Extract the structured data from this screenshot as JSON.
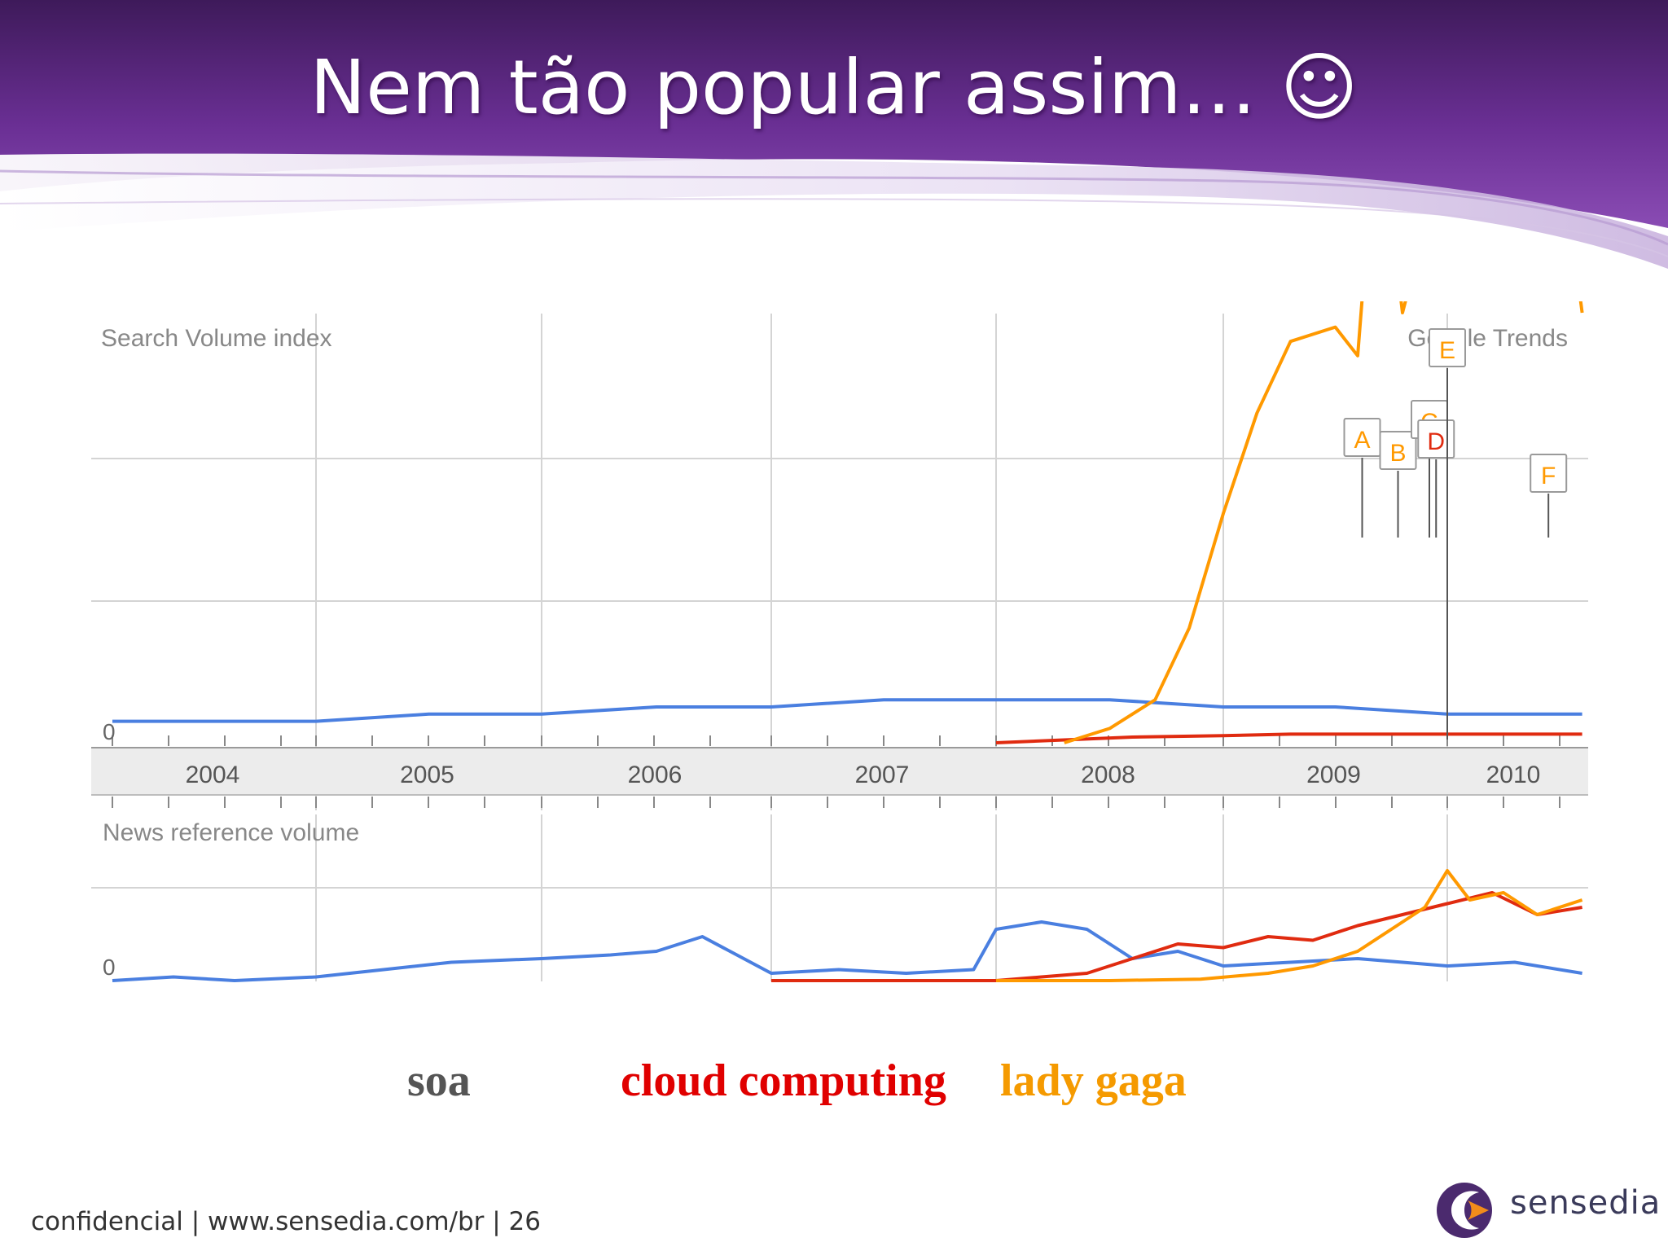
{
  "slide": {
    "title": "Nem tão popular assim…  ☺",
    "footer": "confidencial | www.sensedia.com/br | 26",
    "logo_text": "sensedia"
  },
  "chart_data": [
    {
      "type": "line",
      "title": "Search Volume index",
      "watermark": "Google Trends",
      "xlabel": "",
      "ylabel": "",
      "x_ticks": [
        "2004",
        "2005",
        "2006",
        "2007",
        "2008",
        "2009",
        "2010"
      ],
      "y_ticks": [
        "0"
      ],
      "grid": true,
      "legend": "bottom",
      "series": [
        {
          "name": "soa",
          "color": "#4a7fe0",
          "x": [
            2004.0,
            2004.5,
            2005.0,
            2005.5,
            2006.0,
            2006.5,
            2007.0,
            2007.5,
            2008.0,
            2008.5,
            2009.0,
            2009.5,
            2010.0,
            2010.6
          ],
          "y": [
            0.15,
            0.15,
            0.15,
            0.2,
            0.2,
            0.25,
            0.25,
            0.3,
            0.3,
            0.3,
            0.25,
            0.25,
            0.2,
            0.2
          ]
        },
        {
          "name": "cloud computing",
          "color": "#e02b10",
          "x": [
            2008.0,
            2008.3,
            2008.6,
            2009.0,
            2009.3,
            2009.6,
            2010.0,
            2010.3,
            2010.6
          ],
          "y": [
            0.0,
            0.02,
            0.04,
            0.05,
            0.06,
            0.06,
            0.06,
            0.06,
            0.06
          ]
        },
        {
          "name": "lady gaga",
          "color": "#ff9900",
          "x": [
            2008.3,
            2008.5,
            2008.7,
            2008.85,
            2009.0,
            2009.15,
            2009.3,
            2009.5,
            2009.6,
            2009.65,
            2009.7,
            2009.8,
            2009.9,
            2010.0,
            2010.05,
            2010.1,
            2010.2,
            2010.3,
            2010.35,
            2010.45,
            2010.55,
            2010.6
          ],
          "y": [
            0.0,
            0.1,
            0.3,
            0.8,
            1.6,
            2.3,
            2.8,
            2.9,
            2.7,
            3.7,
            4.3,
            3.0,
            3.6,
            4.4,
            3.8,
            4.2,
            3.6,
            4.1,
            3.3,
            3.8,
            3.6,
            3.0
          ]
        }
      ],
      "annotations": [
        "A",
        "B",
        "C",
        "D",
        "E",
        "F"
      ]
    },
    {
      "type": "line",
      "title": "News reference volume",
      "xlabel": "",
      "ylabel": "",
      "y_ticks": [
        "0"
      ],
      "grid": true,
      "series": [
        {
          "name": "soa",
          "color": "#4a7fe0",
          "x": [
            2004.0,
            2004.3,
            2004.6,
            2005.0,
            2005.3,
            2005.6,
            2006.0,
            2006.3,
            2006.5,
            2006.7,
            2007.0,
            2007.3,
            2007.6,
            2007.9,
            2008.0,
            2008.2,
            2008.4,
            2008.6,
            2008.8,
            2009.0,
            2009.3,
            2009.6,
            2010.0,
            2010.3,
            2010.6
          ],
          "y": [
            0.0,
            0.05,
            0.0,
            0.05,
            0.15,
            0.25,
            0.3,
            0.35,
            0.4,
            0.6,
            0.1,
            0.15,
            0.1,
            0.15,
            0.7,
            0.8,
            0.7,
            0.3,
            0.4,
            0.2,
            0.25,
            0.3,
            0.2,
            0.25,
            0.1
          ]
        },
        {
          "name": "cloud computing",
          "color": "#e02b10",
          "x": [
            2007.0,
            2007.5,
            2008.0,
            2008.2,
            2008.4,
            2008.6,
            2008.8,
            2009.0,
            2009.2,
            2009.4,
            2009.6,
            2009.8,
            2010.0,
            2010.2,
            2010.4,
            2010.6
          ],
          "y": [
            0.0,
            0.0,
            0.0,
            0.05,
            0.1,
            0.3,
            0.5,
            0.45,
            0.6,
            0.55,
            0.75,
            0.9,
            1.05,
            1.2,
            0.9,
            1.0
          ]
        },
        {
          "name": "lady gaga",
          "color": "#ff9900",
          "x": [
            2008.0,
            2008.5,
            2008.9,
            2009.2,
            2009.4,
            2009.6,
            2009.75,
            2009.9,
            2010.0,
            2010.1,
            2010.25,
            2010.4,
            2010.6
          ],
          "y": [
            0.0,
            0.0,
            0.02,
            0.1,
            0.2,
            0.4,
            0.7,
            1.0,
            1.5,
            1.1,
            1.2,
            0.9,
            1.1
          ]
        }
      ]
    }
  ],
  "legend": [
    {
      "label": "soa",
      "color": "#555555"
    },
    {
      "label": "cloud computing",
      "color": "#e00000"
    },
    {
      "label": "lady gaga",
      "color": "#f59a00"
    }
  ]
}
